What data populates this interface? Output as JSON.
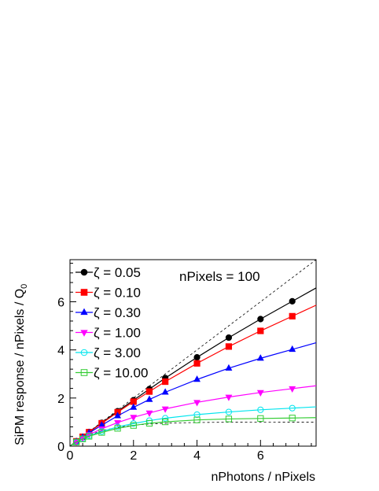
{
  "chart_data": {
    "type": "line",
    "xlabel": "nPhotons / nPixels",
    "ylabel_main": "SiPM response / nPixels / Q",
    "ylabel_sub": "0",
    "xlim": [
      0,
      7.75
    ],
    "ylim": [
      0,
      7.75
    ],
    "xticks": [
      0,
      2,
      4,
      6
    ],
    "yticks": [
      0,
      2,
      4,
      6
    ],
    "grid": false,
    "legend_position": "top-left",
    "annotation": "nPixels = 100",
    "reference_lines": [
      {
        "style": "dashed",
        "desc_values": "y = x"
      },
      {
        "style": "dashed",
        "asymptote": 1.0
      }
    ],
    "series": [
      {
        "name": "ζ =  0.05",
        "color": "#000000",
        "marker": "filled-circle",
        "x": [
          0.2,
          0.4,
          0.6,
          1,
          1.5,
          2,
          2.5,
          3,
          4,
          5,
          6,
          7
        ],
        "y": [
          0.2,
          0.39,
          0.59,
          0.97,
          1.45,
          1.91,
          2.37,
          2.83,
          3.69,
          4.51,
          5.28,
          6.02
        ]
      },
      {
        "name": "ζ =  0.10",
        "color": "#ff0000",
        "marker": "filled-square",
        "x": [
          0.2,
          0.4,
          0.6,
          1,
          1.5,
          2,
          2.5,
          3,
          4,
          5,
          6,
          7
        ],
        "y": [
          0.2,
          0.39,
          0.58,
          0.95,
          1.41,
          1.85,
          2.27,
          2.68,
          3.44,
          4.14,
          4.79,
          5.4
        ]
      },
      {
        "name": "ζ =  0.30",
        "color": "#0000ff",
        "marker": "filled-triangle-up",
        "x": [
          0.2,
          0.4,
          0.6,
          1,
          1.5,
          2,
          2.5,
          3,
          4,
          5,
          6,
          7
        ],
        "y": [
          0.19,
          0.37,
          0.55,
          0.87,
          1.26,
          1.61,
          1.94,
          2.24,
          2.77,
          3.24,
          3.65,
          4.02
        ]
      },
      {
        "name": "ζ =  1.00",
        "color": "#ff00ff",
        "marker": "filled-triangle-down",
        "x": [
          0.2,
          0.4,
          0.6,
          1,
          1.5,
          2,
          2.5,
          3,
          4,
          5,
          6,
          7
        ],
        "y": [
          0.18,
          0.34,
          0.48,
          0.72,
          0.98,
          1.2,
          1.38,
          1.55,
          1.82,
          2.04,
          2.23,
          2.39
        ]
      },
      {
        "name": "ζ =  3.00",
        "color": "#00e5ee",
        "marker": "open-circle",
        "x": [
          0.2,
          0.4,
          0.6,
          1,
          1.5,
          2,
          2.5,
          3,
          4,
          5,
          6,
          7
        ],
        "y": [
          0.17,
          0.31,
          0.43,
          0.61,
          0.8,
          0.94,
          1.06,
          1.16,
          1.31,
          1.42,
          1.51,
          1.58
        ]
      },
      {
        "name": "ζ = 10.00",
        "color": "#33cc33",
        "marker": "open-square",
        "x": [
          0.2,
          0.4,
          0.6,
          1,
          1.5,
          2,
          2.5,
          3,
          4,
          5,
          6,
          7
        ],
        "y": [
          0.17,
          0.3,
          0.41,
          0.57,
          0.74,
          0.86,
          0.95,
          1.01,
          1.09,
          1.13,
          1.15,
          1.17
        ]
      }
    ]
  }
}
